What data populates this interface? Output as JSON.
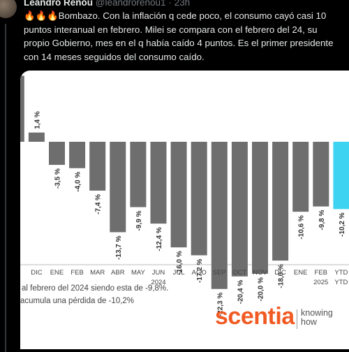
{
  "tweet": {
    "author_name": "Leandro Renou",
    "handle": "@leandrorenou1",
    "time": "23h",
    "text": "Bombazo. Con la inflación q cede poco, el consumo cayó casi 10 puntos interanual en febrero. Milei se compara con el febrero del 24, su propio Gobierno, mes en el q había caído 4 puntos. Es el primer presidente con 14 meses seguidos del consumo caído."
  },
  "chart_data": {
    "type": "bar",
    "categories": [
      "V",
      "DIC",
      "ENE",
      "FEB",
      "MAR",
      "ABR",
      "MAY",
      "JUN",
      "JUL",
      "AGO",
      "SEP",
      "OCT",
      "NOV",
      "DIC",
      "ENE",
      "FEB",
      "YTD"
    ],
    "category_sublabels": [
      "",
      "",
      "",
      "",
      "",
      "",
      "",
      "",
      "",
      "",
      "",
      "",
      "",
      "",
      "",
      "",
      "YTD"
    ],
    "values": [
      10.0,
      1.4,
      -3.5,
      -4.0,
      -7.4,
      -13.7,
      -9.9,
      -12.4,
      -16.0,
      -17.2,
      -22.3,
      -20.4,
      -20.0,
      -18.0,
      -10.6,
      -9.8,
      -10.2
    ],
    "value_labels": [
      "",
      "1,4 %",
      "-3,5 %",
      "-4,0 %",
      "-7,4 %",
      "-13,7 %",
      "-9,9 %",
      "-12,4 %",
      "-16,0 %",
      "-17,2 %",
      "-22,3 %",
      "-20,4 %",
      "-20,0 %",
      "-18,0 %",
      "-10,6 %",
      "-9,8 %",
      "-10,2 %"
    ],
    "year_labels": [
      {
        "label": "2024",
        "under": "JUN"
      },
      {
        "label": "2025",
        "under": "ENE"
      }
    ],
    "bar_color": "#6e6e6e",
    "highlight_color": "#3fd3f2",
    "highlight_index": 16,
    "title": "",
    "xlabel": "",
    "ylabel": ""
  },
  "footnotes": [
    "al febrero del 2024 siendo esta de -9,8%.",
    "acumula una pérdida de -10,2%"
  ],
  "brand": {
    "name": "scentia",
    "tagline_1": "knowing",
    "tagline_2": "how"
  }
}
